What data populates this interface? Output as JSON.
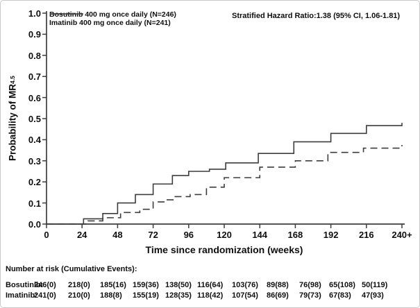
{
  "header": {
    "hazard_ratio": "Stratified Hazard Ratio:1.38 (95% CI, 1.06-1.81)"
  },
  "chart_data": {
    "type": "line",
    "subtype": "kaplan-meier-step",
    "title": "",
    "xlabel": "Time since randomization (weeks)",
    "ylabel": "Probability of MR",
    "ylabel_superscript": "4.5",
    "xlim": [
      0,
      240
    ],
    "ylim": [
      0,
      1
    ],
    "grid": false,
    "xticks": [
      0,
      24,
      48,
      72,
      96,
      120,
      144,
      168,
      192,
      216,
      240
    ],
    "xtick_labels": [
      "0",
      "24",
      "48",
      "72",
      "96",
      "120",
      "144",
      "168",
      "192",
      "216",
      "240+"
    ],
    "yticks": [
      0,
      0.1,
      0.2,
      0.3,
      0.4,
      0.5,
      0.6,
      0.7,
      0.8,
      0.9,
      1.0
    ],
    "ytick_labels": [
      "0.0",
      "0.1",
      "0.2",
      "0.3",
      "0.4",
      "0.5",
      "0.6",
      "0.7",
      "0.8",
      "0.9",
      "1.0"
    ],
    "legend_position": "top-left",
    "legend": [
      {
        "label": "Bosutinib 400 mg once daily (N=246)",
        "style": "solid"
      },
      {
        "label": "Imatinib 400 mg once daily (N=241)",
        "style": "dashed"
      }
    ],
    "line_color": "#3c3c3c",
    "series": [
      {
        "name": "Bosutinib 400 mg once daily",
        "style": "solid",
        "steps": [
          [
            0,
            0
          ],
          [
            25,
            0.025
          ],
          [
            38,
            0.05
          ],
          [
            48,
            0.1
          ],
          [
            60,
            0.14
          ],
          [
            72,
            0.19
          ],
          [
            85,
            0.23
          ],
          [
            96,
            0.25
          ],
          [
            110,
            0.26
          ],
          [
            121,
            0.29
          ],
          [
            143,
            0.335
          ],
          [
            167,
            0.39
          ],
          [
            192,
            0.43
          ],
          [
            216,
            0.467
          ],
          [
            240,
            0.48
          ]
        ]
      },
      {
        "name": "Imatinib 400 mg once daily",
        "style": "dashed",
        "steps": [
          [
            0,
            0
          ],
          [
            28,
            0.015
          ],
          [
            38,
            0.03
          ],
          [
            50,
            0.055
          ],
          [
            63,
            0.07
          ],
          [
            72,
            0.105
          ],
          [
            81,
            0.115
          ],
          [
            86,
            0.13
          ],
          [
            97,
            0.14
          ],
          [
            108,
            0.175
          ],
          [
            120,
            0.22
          ],
          [
            144,
            0.27
          ],
          [
            168,
            0.3
          ],
          [
            190,
            0.34
          ],
          [
            214,
            0.36
          ],
          [
            240,
            0.375
          ]
        ]
      }
    ]
  },
  "risk_table": {
    "title": "Number at risk (Cumulative Events):",
    "rows": [
      {
        "label": "Bosutinib:",
        "values": [
          "246(0)",
          "218(0)",
          "185(16)",
          "159(36)",
          "138(50)",
          "116(64)",
          "103(76)",
          "89(88)",
          "76(98)",
          "65(108)",
          "50(119)"
        ]
      },
      {
        "label": "Imatinib:",
        "values": [
          "241(0)",
          "210(0)",
          "188(8)",
          "155(19)",
          "128(35)",
          "118(42)",
          "107(54)",
          "86(69)",
          "79(73)",
          "67(83)",
          "47(93)"
        ]
      }
    ]
  }
}
